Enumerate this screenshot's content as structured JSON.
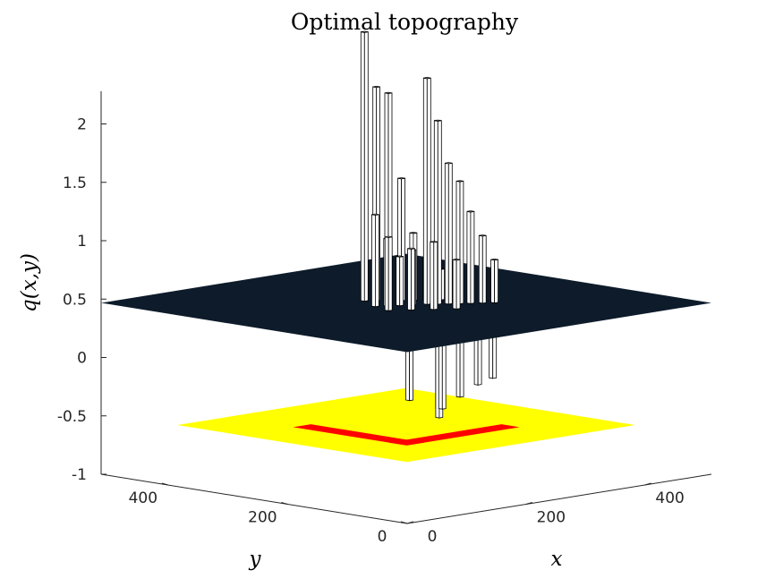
{
  "chart_data": {
    "type": "3d-bar",
    "title": "Optimal topography",
    "xlabel": "x",
    "ylabel": "y",
    "zlabel": "q(x,y)",
    "x_ticks": [
      "0",
      "200",
      "400"
    ],
    "y_ticks": [
      "0",
      "200",
      "400"
    ],
    "z_ticks": [
      "-1",
      "-0.5",
      "0",
      "0.5",
      "1",
      "1.5",
      "2"
    ],
    "zlim": [
      -1,
      2.2
    ],
    "x_range": [
      0,
      512
    ],
    "y_range": [
      0,
      512
    ],
    "grid": false,
    "colors": {
      "bars": "#ffffff",
      "bar_edges": "#000000",
      "plane": "#0d1b2a",
      "base_outer": "#ffff00",
      "base_inner": "#ff0000"
    },
    "plane_level": 0,
    "base_level": -1,
    "series": [
      {
        "values": [
          {
            "x": 230,
            "y": 300,
            "z": 2.2
          },
          {
            "x": 240,
            "y": 290,
            "z": 1.75
          },
          {
            "x": 250,
            "y": 280,
            "z": 1.7
          },
          {
            "x": 262,
            "y": 270,
            "z": 1.0
          },
          {
            "x": 274,
            "y": 262,
            "z": 0.55
          },
          {
            "x": 286,
            "y": 252,
            "z": 0.35
          },
          {
            "x": 300,
            "y": 242,
            "z": 0.25
          },
          {
            "x": 265,
            "y": 230,
            "z": 1.85
          },
          {
            "x": 275,
            "y": 222,
            "z": 1.5
          },
          {
            "x": 285,
            "y": 214,
            "z": 1.15
          },
          {
            "x": 296,
            "y": 206,
            "z": 1.0
          },
          {
            "x": 306,
            "y": 198,
            "z": 0.75
          },
          {
            "x": 318,
            "y": 190,
            "z": 0.55
          },
          {
            "x": 330,
            "y": 182,
            "z": 0.35
          },
          {
            "x": 210,
            "y": 262,
            "z": 0.75
          },
          {
            "x": 222,
            "y": 254,
            "z": 0.55
          },
          {
            "x": 235,
            "y": 246,
            "z": 0.4
          },
          {
            "x": 248,
            "y": 238,
            "z": 0.45
          },
          {
            "x": 200,
            "y": 230,
            "z": 0.6
          },
          {
            "x": 222,
            "y": 214,
            "z": 0.5
          },
          {
            "x": 244,
            "y": 198,
            "z": 0.55
          },
          {
            "x": 266,
            "y": 182,
            "z": 0.4
          },
          {
            "x": 210,
            "y": 150,
            "z": -0.75
          },
          {
            "x": 225,
            "y": 170,
            "z": -0.85
          },
          {
            "x": 240,
            "y": 185,
            "z": -0.8
          },
          {
            "x": 255,
            "y": 165,
            "z": -0.7
          },
          {
            "x": 270,
            "y": 150,
            "z": -0.6
          },
          {
            "x": 195,
            "y": 190,
            "z": -0.7
          },
          {
            "x": 285,
            "y": 140,
            "z": -0.55
          }
        ]
      }
    ]
  }
}
